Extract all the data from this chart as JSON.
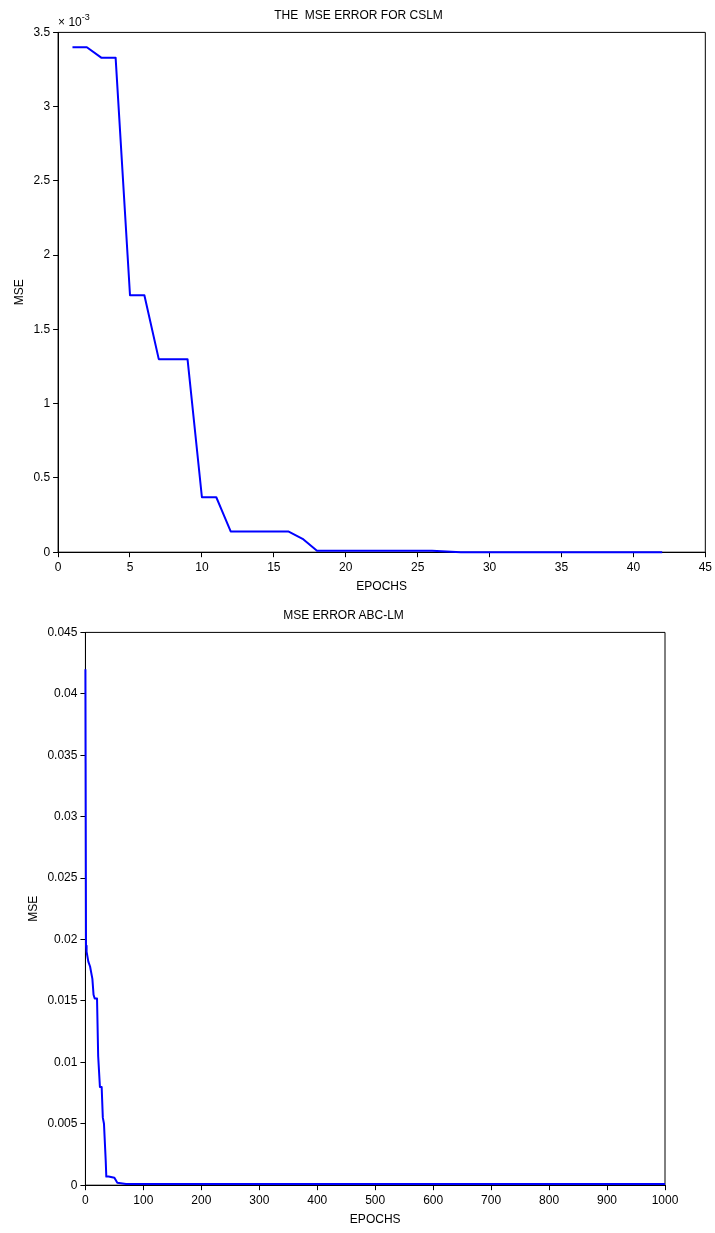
{
  "chart_data": [
    {
      "type": "line",
      "title": "THE  MSE ERROR FOR CSLM",
      "xlabel": "EPOCHS",
      "ylabel": "MSE",
      "annotations": [
        "× 10$^{-3}$"
      ],
      "series": [
        {
          "color": "#0000ff",
          "x": [
            1,
            2,
            3,
            4,
            5,
            6,
            7,
            8,
            9,
            10,
            11,
            12,
            13,
            14,
            15,
            16,
            17,
            18,
            20,
            22,
            24,
            26,
            28,
            30,
            32,
            34,
            36,
            38,
            40,
            42
          ],
          "values": [
            3.4,
            3.4,
            3.33,
            3.33,
            1.73,
            1.73,
            1.3,
            1.3,
            1.3,
            0.37,
            0.37,
            0.14,
            0.14,
            0.14,
            0.14,
            0.14,
            0.09,
            0.01,
            0.01,
            0.01,
            0.01,
            0.01,
            0,
            0,
            0,
            0,
            0,
            0,
            0,
            0
          ]
        }
      ],
      "xlim": [
        0,
        45
      ],
      "xticks": [
        0,
        5,
        10,
        15,
        20,
        25,
        30,
        35,
        40,
        45
      ],
      "ylim": [
        0,
        3.5
      ],
      "yticks": [
        0,
        0.5,
        1,
        1.5,
        2,
        2.5,
        3,
        3.5
      ],
      "grid": false,
      "legend": false,
      "marker": "none",
      "line_style": "solid"
    },
    {
      "type": "line",
      "title": "MSE ERROR ABC-LM",
      "xlabel": "EPOCHS",
      "ylabel": "MSE",
      "series": [
        {
          "color": "#0000ff",
          "x": [
            0,
            1,
            2,
            5,
            8,
            12,
            14,
            16,
            20,
            22,
            25,
            28,
            30,
            32,
            35,
            36,
            40,
            50,
            55,
            70,
            100,
            200,
            400,
            600,
            800,
            1000
          ],
          "values": [
            0.042,
            0.0195,
            0.019,
            0.0182,
            0.0178,
            0.0168,
            0.0155,
            0.0152,
            0.0152,
            0.0105,
            0.008,
            0.008,
            0.0055,
            0.005,
            0.002,
            0.0007,
            0.0007,
            0.0006,
            0.0002,
            0.0001,
            0.0001,
            0.0001,
            0.0001,
            0.0001,
            0.0001,
            0.0001
          ]
        }
      ],
      "xlim": [
        0,
        1000
      ],
      "xticks": [
        0,
        100,
        200,
        300,
        400,
        500,
        600,
        700,
        800,
        900,
        1000
      ],
      "ylim": [
        0,
        0.045
      ],
      "yticks": [
        0,
        0.005,
        0.01,
        0.015,
        0.02,
        0.025,
        0.03,
        0.035,
        0.04,
        0.045
      ],
      "grid": false,
      "legend": false,
      "marker": "none",
      "line_style": "solid"
    }
  ]
}
